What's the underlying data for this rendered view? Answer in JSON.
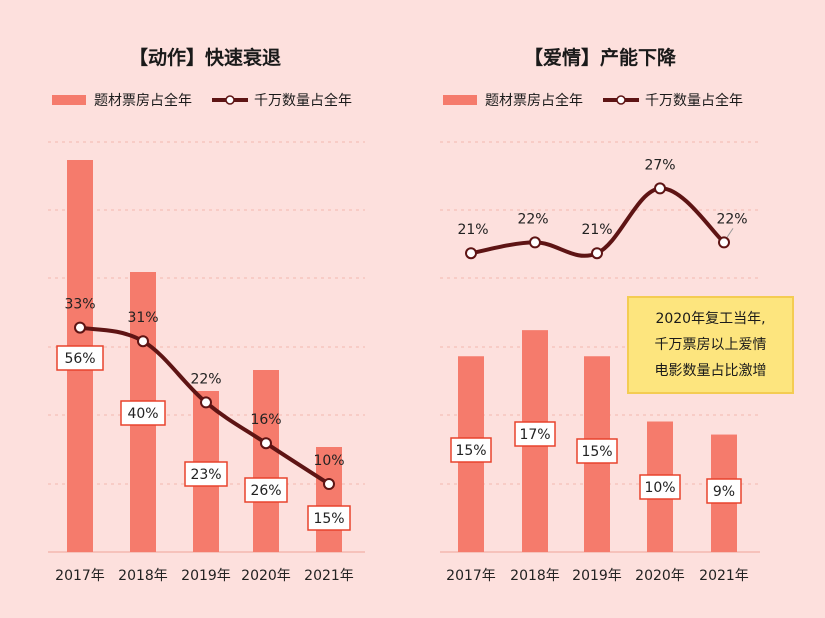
{
  "colors": {
    "background": "#fde0dd",
    "bar": "#f57b6c",
    "line": "#5e1414",
    "grid": "#f3b8b0",
    "box_border": "#e8432d",
    "annotation_bg": "#fde57e"
  },
  "legend": {
    "bar_label": "题材票房占全年",
    "line_label": "千万数量占全年"
  },
  "annotation": {
    "lines": [
      "2020年复工当年,",
      "千万票房以上爱情",
      "电影数量占比激增"
    ]
  },
  "chart_data": [
    {
      "type": "bar+line",
      "title": "【动作】快速衰退",
      "categories": [
        "2017年",
        "2018年",
        "2019年",
        "2020年",
        "2021年"
      ],
      "series": [
        {
          "name": "题材票房占全年",
          "type": "bar",
          "values": [
            56,
            40,
            23,
            26,
            15
          ],
          "labels": [
            "56%",
            "40%",
            "23%",
            "26%",
            "15%"
          ]
        },
        {
          "name": "千万数量占全年",
          "type": "line",
          "values": [
            33,
            31,
            22,
            16,
            10
          ],
          "labels": [
            "33%",
            "31%",
            "22%",
            "16%",
            "10%"
          ]
        }
      ],
      "ylim": [
        0,
        60
      ],
      "grid": true
    },
    {
      "type": "bar+line",
      "title": "【爱情】产能下降",
      "categories": [
        "2017年",
        "2018年",
        "2019年",
        "2020年",
        "2021年"
      ],
      "series": [
        {
          "name": "题材票房占全年",
          "type": "bar",
          "values": [
            15,
            17,
            15,
            10,
            9
          ],
          "labels": [
            "15%",
            "17%",
            "15%",
            "10%",
            "9%"
          ]
        },
        {
          "name": "千万数量占全年",
          "type": "line",
          "values": [
            21,
            22,
            21,
            27,
            22
          ],
          "labels": [
            "21%",
            "22%",
            "21%",
            "27%",
            "22%"
          ]
        }
      ],
      "grid": true
    }
  ]
}
